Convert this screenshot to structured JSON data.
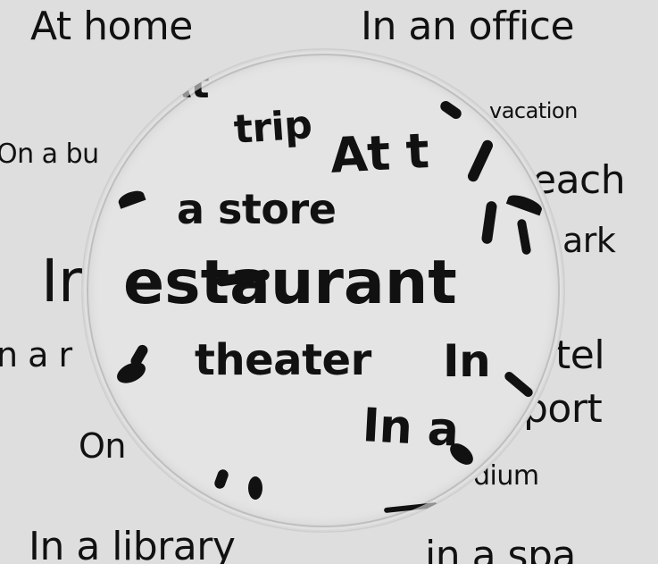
{
  "background_words": {
    "at_home": "At home",
    "in_an_office": "In an office",
    "on_a_bus": "On a bu",
    "vacation": "vacation",
    "beach": "each",
    "park": "ark",
    "in_restaurant_left": "Ir",
    "in_a_left": "n a r",
    "hotel": "tel",
    "airport": "port",
    "on": "On",
    "stadium": "dium",
    "in_a_library": "In a library",
    "in_a_spa": "in a spa"
  },
  "lens_words": {
    "at_top": "At",
    "trip": "trip",
    "at_t": "At t",
    "a_store": "a store",
    "restaurant": "estaurant",
    "theater": "theater",
    "in_right": "In",
    "in_a": "In a"
  },
  "colors": {
    "background": "#dedede",
    "text": "#111111",
    "lens": "#e4e4e4"
  }
}
